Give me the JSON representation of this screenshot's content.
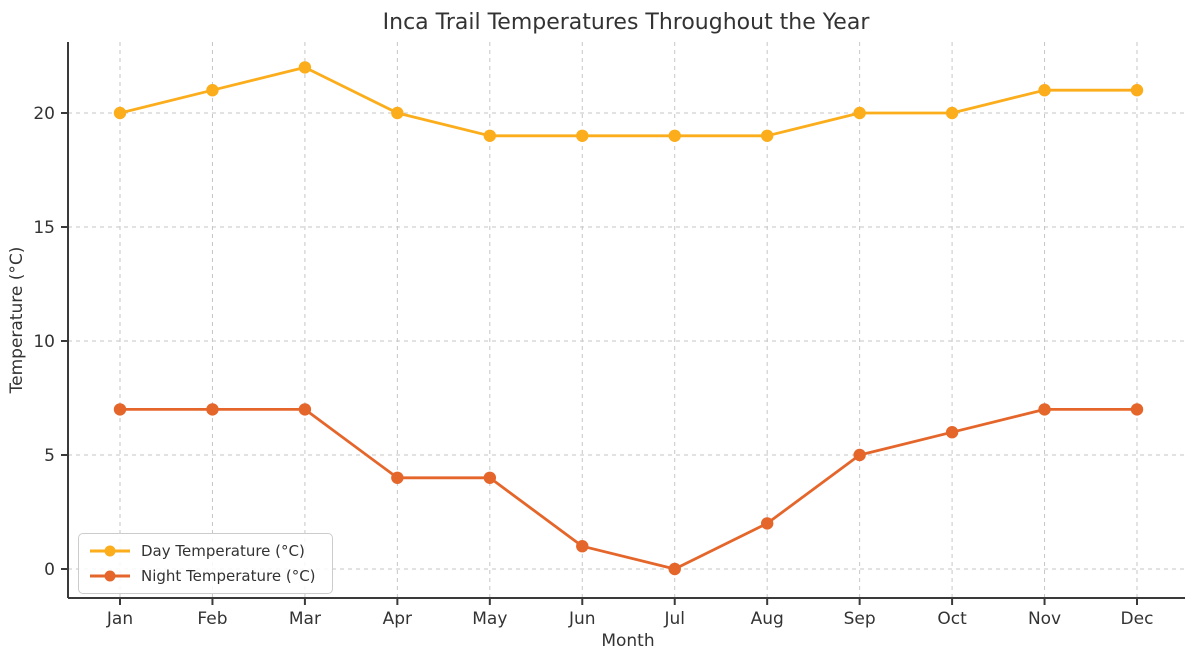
{
  "chart_data": {
    "type": "line",
    "title": "Inca Trail Temperatures Throughout the Year",
    "xlabel": "Month",
    "ylabel": "Temperature (°C)",
    "categories": [
      "Jan",
      "Feb",
      "Mar",
      "Apr",
      "May",
      "Jun",
      "Jul",
      "Aug",
      "Sep",
      "Oct",
      "Nov",
      "Dec"
    ],
    "series": [
      {
        "name": "Day Temperature (°C)",
        "color": "#FBAD1B",
        "values": [
          20,
          21,
          22,
          20,
          19,
          19,
          19,
          19,
          20,
          20,
          21,
          21
        ]
      },
      {
        "name": "Night Temperature (°C)",
        "color": "#E5662B",
        "values": [
          7,
          7,
          7,
          4,
          4,
          1,
          0,
          2,
          5,
          6,
          7,
          7
        ]
      }
    ],
    "yticks": [
      0,
      5,
      10,
      15,
      20
    ],
    "ylim": [
      -1.3,
      23.1
    ],
    "grid": true,
    "grid_style": "dashed",
    "legend_position": "lower-left",
    "marker": "circle"
  },
  "colors": {
    "background": "#ffffff",
    "axis": "#3a3a3a",
    "grid": "#c6c6c6",
    "text": "#333333",
    "legend_border": "#cccccc",
    "legend_background": "#ffffff"
  }
}
